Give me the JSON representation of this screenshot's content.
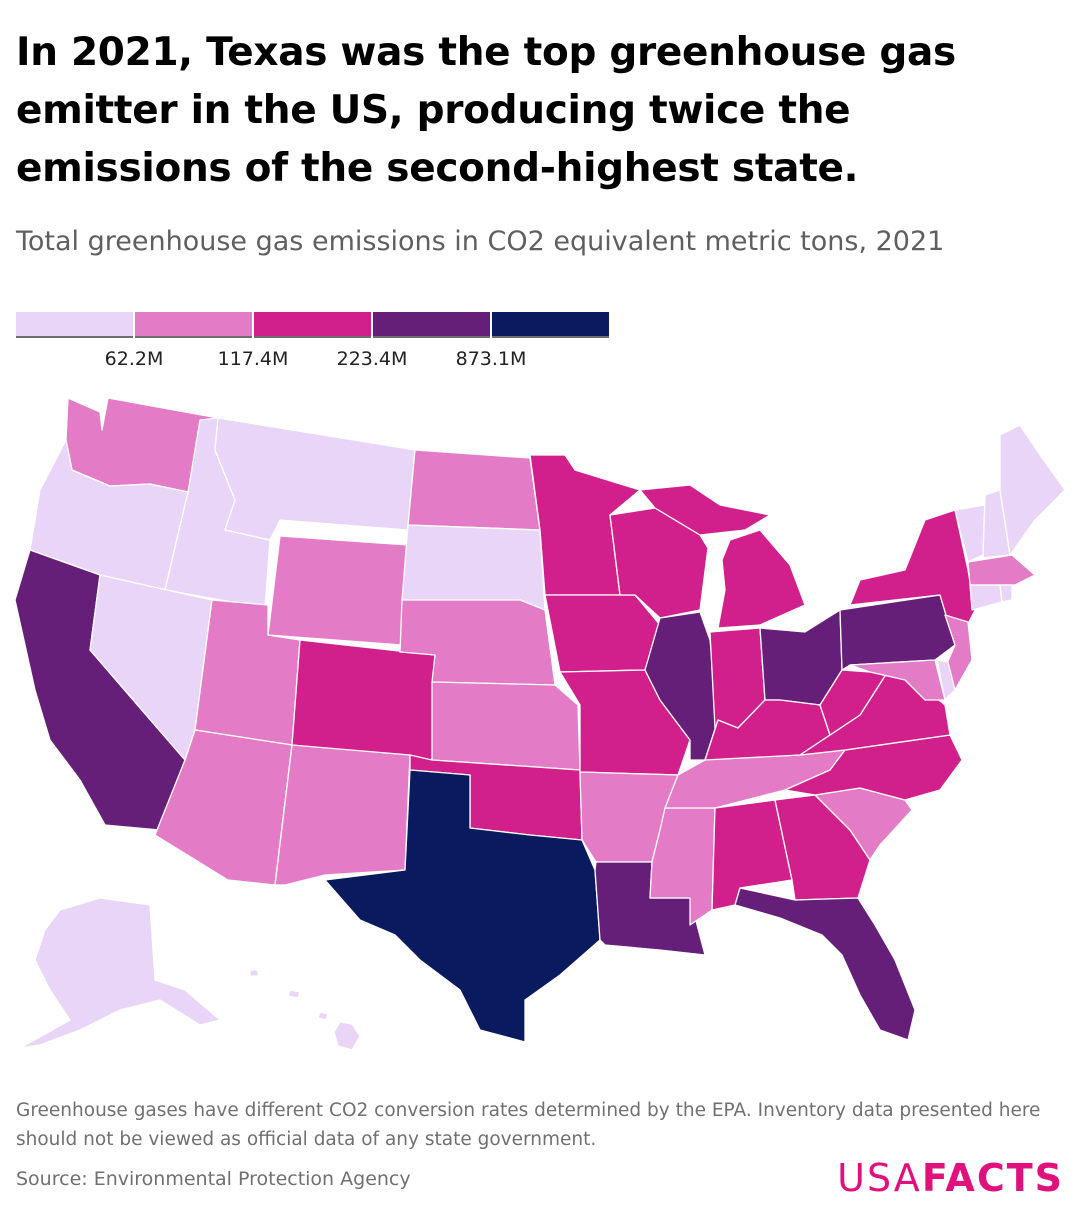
{
  "title": "In 2021, Texas was the top greenhouse gas emitter in the US, producing twice the emissions of the second-highest state.",
  "subtitle": "Total greenhouse gas emissions in CO2 equivalent metric tons, 2021",
  "legend": {
    "colors": [
      "#e9d5f7",
      "#e47bc6",
      "#d1208c",
      "#661f78",
      "#0a1a5e"
    ],
    "ticks": [
      "62.2M",
      "117.4M",
      "223.4M",
      "873.1M"
    ]
  },
  "map_data": {
    "type": "choropleth",
    "bins": {
      "bin1": [
        "Alaska",
        "Hawaii",
        "Oregon",
        "Idaho",
        "Montana",
        "Nevada",
        "South Dakota",
        "Vermont",
        "New Hampshire",
        "Maine",
        "Connecticut",
        "Rhode Island",
        "Delaware"
      ],
      "bin2": [
        "Washington",
        "Wyoming",
        "Utah",
        "Arizona",
        "New Mexico",
        "North Dakota",
        "Nebraska",
        "Kansas",
        "Arkansas",
        "Mississippi",
        "Tennessee",
        "South Carolina",
        "New Jersey",
        "Maryland",
        "Massachusetts"
      ],
      "bin3": [
        "Colorado",
        "Oklahoma",
        "Minnesota",
        "Iowa",
        "Missouri",
        "Wisconsin",
        "Michigan",
        "Indiana",
        "Kentucky",
        "Alabama",
        "Georgia",
        "North Carolina",
        "Virginia",
        "West Virginia",
        "New York"
      ],
      "bin4": [
        "California",
        "Illinois",
        "Ohio",
        "Pennsylvania",
        "Louisiana",
        "Florida"
      ],
      "bin5": [
        "Texas"
      ]
    }
  },
  "note": "Greenhouse gases have different CO2 conversion rates determined by the EPA. Inventory data presented here should not be viewed as official data of any state government.",
  "source": "Source: Environmental Protection Agency",
  "logo": {
    "part1": "USA",
    "part2": "FACTS"
  }
}
